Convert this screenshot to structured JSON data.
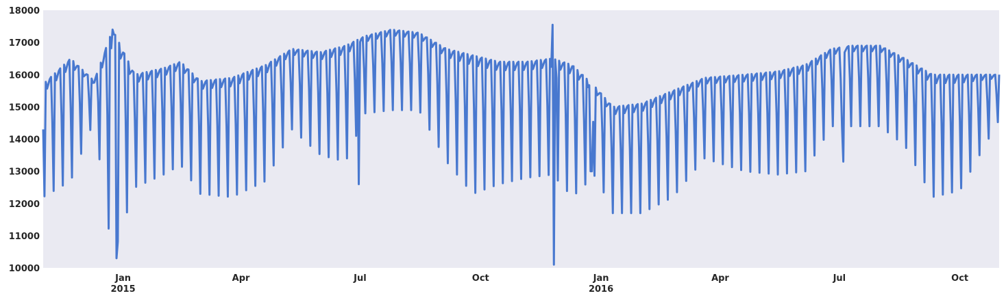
{
  "chart_data": {
    "type": "line",
    "title": "",
    "xlabel": "",
    "ylabel": "",
    "x_range": [
      "2014-11-01",
      "2016-10-31"
    ],
    "ylim": [
      10000,
      18000
    ],
    "grid": false,
    "legend": "none",
    "colors": {
      "background": "#eaeaf2",
      "line": "#4878cf",
      "text": "#262626"
    },
    "y_ticks": [
      "10000",
      "11000",
      "12000",
      "13000",
      "14000",
      "15000",
      "16000",
      "17000",
      "18000"
    ],
    "x_ticks": [
      {
        "date": "2015-01-01",
        "label": "Jan",
        "sublabel": "2015"
      },
      {
        "date": "2015-04-01",
        "label": "Apr",
        "sublabel": ""
      },
      {
        "date": "2015-07-01",
        "label": "Jul",
        "sublabel": ""
      },
      {
        "date": "2015-10-01",
        "label": "Oct",
        "sublabel": ""
      },
      {
        "date": "2016-01-01",
        "label": "Jan",
        "sublabel": "2016"
      },
      {
        "date": "2016-04-01",
        "label": "Apr",
        "sublabel": ""
      },
      {
        "date": "2016-07-01",
        "label": "Jul",
        "sublabel": ""
      },
      {
        "date": "2016-10-01",
        "label": "Oct",
        "sublabel": ""
      }
    ],
    "series": [
      {
        "pattern": "weekly",
        "points": [
          {
            "x": "2014-11-01",
            "weekday": 15700,
            "weekend": 12200
          },
          {
            "x": "2014-11-22",
            "weekday": 16500,
            "weekend": 12700
          },
          {
            "x": "2014-12-10",
            "weekday": 15800,
            "weekend": 14600
          },
          {
            "x": "2014-12-24",
            "weekday": 17400,
            "weekend": 10300
          },
          {
            "x": "2015-01-10",
            "weekday": 16000,
            "weekend": 12500
          },
          {
            "x": "2015-02-01",
            "weekday": 16200,
            "weekend": 12900
          },
          {
            "x": "2015-02-14",
            "weekday": 16400,
            "weekend": 13200
          },
          {
            "x": "2015-03-01",
            "weekday": 15800,
            "weekend": 12300
          },
          {
            "x": "2015-03-25",
            "weekday": 15900,
            "weekend": 12200
          },
          {
            "x": "2015-04-20",
            "weekday": 16300,
            "weekend": 12700
          },
          {
            "x": "2015-05-10",
            "weekday": 16800,
            "weekend": 14300
          },
          {
            "x": "2015-06-01",
            "weekday": 16700,
            "weekend": 13500
          },
          {
            "x": "2015-06-20",
            "weekday": 16900,
            "weekend": 13300
          },
          {
            "x": "2015-07-05",
            "weekday": 17200,
            "weekend": 14800
          },
          {
            "x": "2015-07-25",
            "weekday": 17400,
            "weekend": 14900
          },
          {
            "x": "2015-08-15",
            "weekday": 17300,
            "weekend": 14900
          },
          {
            "x": "2015-09-05",
            "weekday": 16800,
            "weekend": 13300
          },
          {
            "x": "2015-09-25",
            "weekday": 16600,
            "weekend": 12300
          },
          {
            "x": "2015-10-15",
            "weekday": 16400,
            "weekend": 12600
          },
          {
            "x": "2015-11-05",
            "weekday": 16400,
            "weekend": 12800
          },
          {
            "x": "2015-11-25",
            "weekday": 16500,
            "weekend": 12900
          },
          {
            "x": "2015-12-10",
            "weekday": 16300,
            "weekend": 12200
          },
          {
            "x": "2015-12-28",
            "weekday": 15600,
            "weekend": 12900
          },
          {
            "x": "2016-01-10",
            "weekday": 15000,
            "weekend": 11700
          },
          {
            "x": "2016-02-01",
            "weekday": 15100,
            "weekend": 11700
          },
          {
            "x": "2016-02-25",
            "weekday": 15500,
            "weekend": 12200
          },
          {
            "x": "2016-03-20",
            "weekday": 15900,
            "weekend": 13400
          },
          {
            "x": "2016-04-20",
            "weekday": 16000,
            "weekend": 13000
          },
          {
            "x": "2016-05-15",
            "weekday": 16100,
            "weekend": 12900
          },
          {
            "x": "2016-06-05",
            "weekday": 16300,
            "weekend": 13000
          },
          {
            "x": "2016-06-25",
            "weekday": 16800,
            "weekend": 14400
          },
          {
            "x": "2016-07-10",
            "weekday": 16900,
            "weekend": 14400
          },
          {
            "x": "2016-08-01",
            "weekday": 16900,
            "weekend": 14400
          },
          {
            "x": "2016-08-20",
            "weekday": 16500,
            "weekend": 13800
          },
          {
            "x": "2016-09-10",
            "weekday": 16000,
            "weekend": 12200
          },
          {
            "x": "2016-10-01",
            "weekday": 16000,
            "weekend": 12400
          },
          {
            "x": "2016-10-31",
            "weekday": 16000,
            "weekend": 14600
          }
        ],
        "outliers": [
          {
            "x": "2014-12-24",
            "y": 17400
          },
          {
            "x": "2014-12-27",
            "y": 10300
          },
          {
            "x": "2015-06-30",
            "y": 12600
          },
          {
            "x": "2015-11-25",
            "y": 17550
          },
          {
            "x": "2015-11-26",
            "y": 10100
          },
          {
            "x": "2015-11-28",
            "y": 15900
          },
          {
            "x": "2015-12-24",
            "y": 13000
          },
          {
            "x": "2015-12-25",
            "y": 13000
          },
          {
            "x": "2016-07-04",
            "y": 13300
          }
        ]
      }
    ]
  }
}
